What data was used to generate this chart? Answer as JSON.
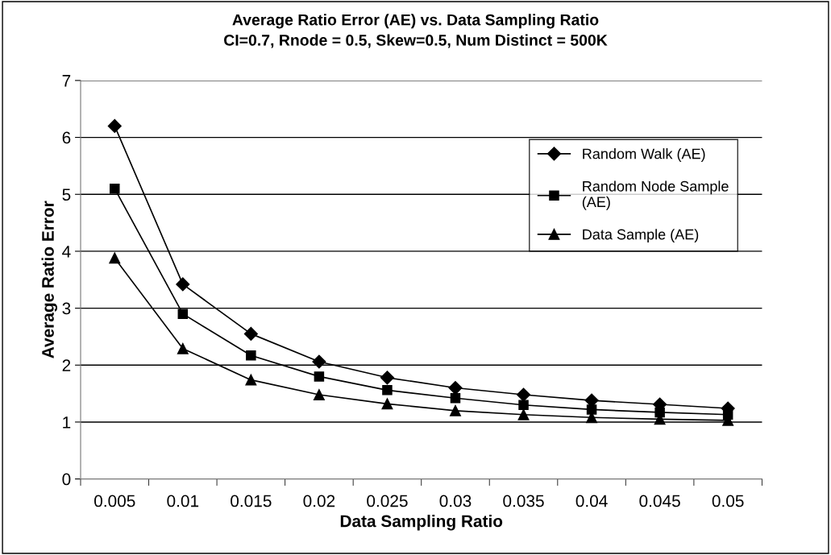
{
  "chart_data": {
    "type": "line",
    "title": "Average Ratio Error (AE) vs. Data Sampling Ratio\nCI=0.7, Rnode = 0.5, Skew=0.5, Num Distinct = 500K",
    "xlabel": "Data Sampling Ratio",
    "ylabel": "Average Ratio Error",
    "categories": [
      "0.005",
      "0.01",
      "0.015",
      "0.02",
      "0.025",
      "0.03",
      "0.035",
      "0.04",
      "0.045",
      "0.05"
    ],
    "series": [
      {
        "name": "Random Walk (AE)",
        "color": "#000000",
        "marker": "diamond",
        "values": [
          6.2,
          3.42,
          2.55,
          2.06,
          1.78,
          1.6,
          1.48,
          1.38,
          1.31,
          1.24
        ]
      },
      {
        "name": "Random Node Sample (AE)",
        "color": "#000000",
        "marker": "square",
        "values": [
          5.1,
          2.9,
          2.17,
          1.8,
          1.56,
          1.42,
          1.3,
          1.22,
          1.17,
          1.13
        ]
      },
      {
        "name": "Data Sample (AE)",
        "color": "#000000",
        "marker": "triangle",
        "values": [
          3.88,
          2.29,
          1.74,
          1.48,
          1.32,
          1.2,
          1.13,
          1.08,
          1.05,
          1.03
        ]
      }
    ],
    "ylim": [
      0,
      7
    ],
    "yticks": [
      0,
      1,
      2,
      3,
      4,
      5,
      6,
      7
    ],
    "grid": "y",
    "legend": "top right",
    "line_style": "solid"
  }
}
